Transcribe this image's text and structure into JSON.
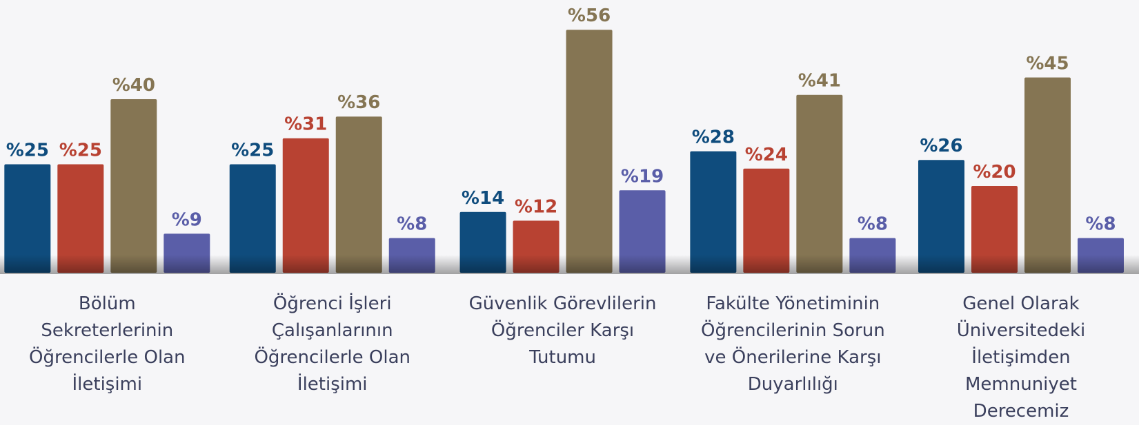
{
  "chart_data": {
    "type": "bar",
    "categories": [
      "Bölüm\nSekreterlerinin\nÖğrencilerle Olan\nİletişimi",
      "Öğrenci İşleri\nÇalışanlarının\nÖğrencilerle Olan\nİletişimi",
      "Güvenlik Görevlilerin\nÖğrenciler Karşı\nTutumu",
      "Fakülte Yönetiminin\nÖğrencilerinin Sorun\nve Önerilerine Karşı\nDuyarlılığı",
      "Genel Olarak\nÜniversitedeki\nİletişimden\nMemnuniyet\nDerecemiz"
    ],
    "series": [
      {
        "color": "#0f4c7d",
        "values": [
          25,
          25,
          14,
          28,
          26
        ],
        "value_labels": [
          "%25",
          "%25",
          "%14",
          "%28",
          "%26"
        ]
      },
      {
        "color": "#b84232",
        "values": [
          25,
          31,
          12,
          24,
          20
        ],
        "value_labels": [
          "%25",
          "%31",
          "%12",
          "%24",
          "%20"
        ]
      },
      {
        "color": "#857553",
        "values": [
          40,
          36,
          56,
          41,
          45
        ],
        "value_labels": [
          "%40",
          "%36",
          "%56",
          "%41",
          "%45"
        ]
      },
      {
        "color": "#5a5ea8",
        "values": [
          9,
          8,
          19,
          8,
          8
        ],
        "value_labels": [
          "%9",
          "%8",
          "%19",
          "%8",
          "%8"
        ]
      }
    ]
  }
}
